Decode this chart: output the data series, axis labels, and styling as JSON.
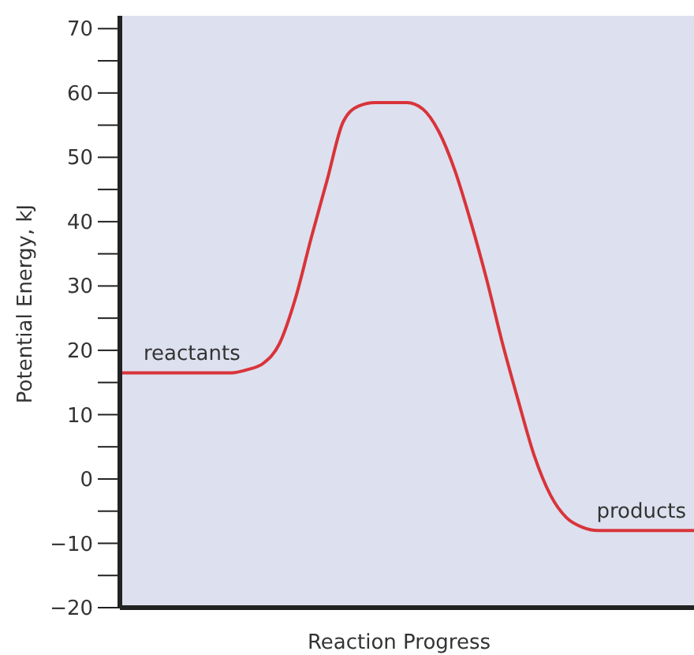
{
  "chart_data": {
    "type": "line",
    "xlabel": "Reaction Progress",
    "ylabel": "Potential Energy, kJ",
    "categories": [
      null,
      null,
      null,
      null,
      null,
      null,
      null,
      null,
      null,
      null,
      null,
      null,
      null,
      null,
      null,
      null,
      null,
      null,
      null,
      null,
      null,
      null,
      null,
      null,
      null,
      null,
      null,
      null,
      null,
      null,
      null,
      null,
      null,
      null,
      null,
      null,
      null
    ],
    "series": [
      {
        "color": "#d8343a",
        "values": [
          16.5,
          16.5,
          16.5,
          16.5,
          16.5,
          16.5,
          16.5,
          16.5,
          17,
          18,
          21,
          28,
          37.5,
          46.5,
          55.5,
          58,
          58.5,
          58.5,
          58.5,
          57.5,
          54,
          48,
          40,
          31,
          21,
          12,
          3.5,
          -2.5,
          -6,
          -7.5,
          -8,
          -8,
          -8,
          -8,
          -8,
          -8,
          -8
        ]
      }
    ],
    "ylim": [
      -20,
      72
    ],
    "yticks": [
      -20,
      {
        "value": -15,
        "label": null
      },
      -10,
      {
        "value": -5,
        "label": null
      },
      0,
      {
        "value": 5,
        "label": null
      },
      10,
      {
        "value": 15,
        "label": null
      },
      20,
      {
        "value": 25,
        "label": null
      },
      30,
      {
        "value": 35,
        "label": null
      },
      40,
      {
        "value": 45,
        "label": null
      },
      50,
      {
        "value": 55,
        "label": null
      },
      60,
      {
        "value": 65,
        "label": null
      },
      70
    ],
    "annotations": [
      "reactants",
      "products"
    ],
    "grid": false,
    "marker": "none",
    "line_style": "solid"
  }
}
